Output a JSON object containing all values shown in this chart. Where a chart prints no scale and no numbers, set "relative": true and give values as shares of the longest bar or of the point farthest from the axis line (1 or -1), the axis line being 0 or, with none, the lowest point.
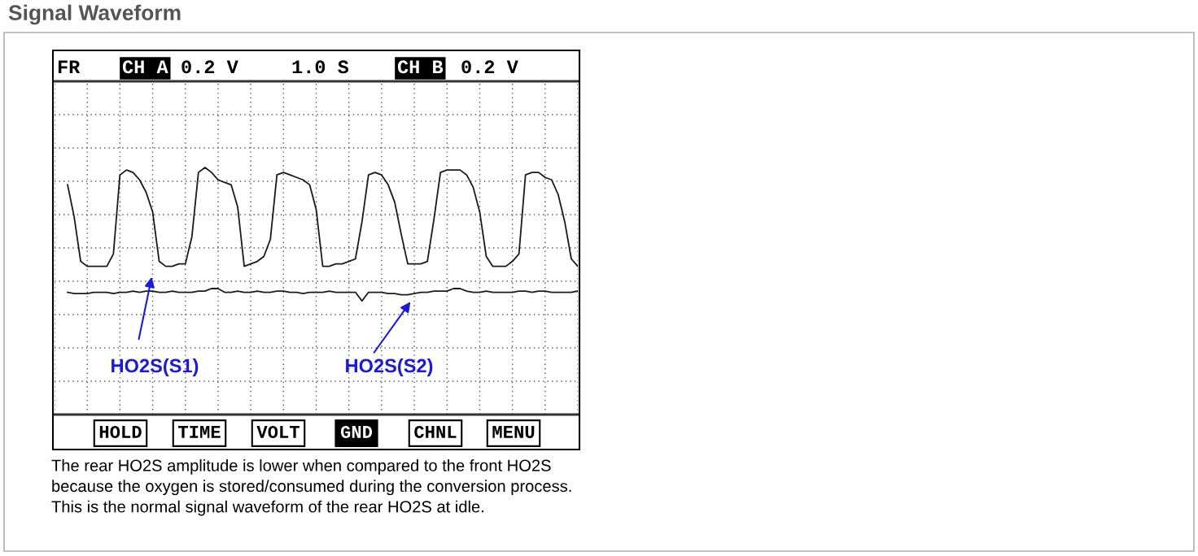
{
  "chart_data": {
    "type": "line",
    "title": "Signal Waveform",
    "relative": true,
    "grid": true,
    "marker": "none",
    "line_style": "solid",
    "categories": [
      null,
      null,
      null,
      null,
      null,
      null,
      null,
      null,
      null,
      null,
      null,
      null,
      null,
      null,
      null,
      null,
      null,
      null,
      null,
      null,
      null,
      null,
      null,
      null,
      null,
      null,
      null,
      null,
      null,
      null,
      null,
      null,
      null,
      null,
      null,
      null,
      null,
      null,
      null,
      null,
      null,
      null,
      null,
      null,
      null,
      null,
      null,
      null,
      null,
      null,
      null,
      null,
      null,
      null,
      null,
      null,
      null,
      null,
      null,
      null,
      null,
      null,
      null,
      null,
      null,
      null,
      null,
      null,
      null,
      null,
      null,
      null,
      null,
      null,
      null,
      null,
      null,
      null,
      null
    ],
    "series": [
      {
        "color": "#1a1a1a",
        "values": [
          0.93,
          0.8,
          0.62,
          0.6,
          0.6,
          0.6,
          0.6,
          0.65,
          0.97,
          0.99,
          0.98,
          0.95,
          0.9,
          0.82,
          0.62,
          0.6,
          0.6,
          0.61,
          0.61,
          0.72,
          0.98,
          1.0,
          0.98,
          0.95,
          0.94,
          0.93,
          0.84,
          0.6,
          0.61,
          0.62,
          0.64,
          0.71,
          0.97,
          0.98,
          0.97,
          0.96,
          0.95,
          0.93,
          0.83,
          0.6,
          0.6,
          0.61,
          0.61,
          0.62,
          0.63,
          0.78,
          0.97,
          0.98,
          0.97,
          0.93,
          0.86,
          0.73,
          0.61,
          0.61,
          0.61,
          0.62,
          0.79,
          0.98,
          0.99,
          0.99,
          0.99,
          0.97,
          0.92,
          0.82,
          0.64,
          0.6,
          0.6,
          0.6,
          0.62,
          0.65,
          0.97,
          0.98,
          0.98,
          0.96,
          0.95,
          0.89,
          0.78,
          0.63,
          0.6
        ]
      },
      {
        "color": "#1a1a1a",
        "values": [
          0.495,
          0.49,
          0.49,
          0.49,
          0.495,
          0.495,
          0.495,
          0.49,
          0.495,
          0.495,
          0.5,
          0.495,
          0.5,
          0.5,
          0.495,
          0.495,
          0.5,
          0.495,
          0.495,
          0.495,
          0.5,
          0.5,
          0.51,
          0.51,
          0.495,
          0.495,
          0.5,
          0.495,
          0.495,
          0.5,
          0.495,
          0.495,
          0.5,
          0.5,
          0.495,
          0.495,
          0.49,
          0.495,
          0.495,
          0.495,
          0.5,
          0.495,
          0.495,
          0.495,
          0.495,
          0.46,
          0.495,
          0.495,
          0.495,
          0.49,
          0.49,
          0.485,
          0.485,
          0.49,
          0.495,
          0.495,
          0.5,
          0.5,
          0.5,
          0.51,
          0.51,
          0.5,
          0.495,
          0.495,
          0.5,
          0.495,
          0.495,
          0.495,
          0.495,
          0.5,
          0.5,
          0.495,
          0.5,
          0.5,
          0.495,
          0.495,
          0.495,
          0.495,
          0.5
        ]
      }
    ],
    "annotations": [
      "FR",
      "CH A",
      "0.2 V",
      "1.0 S",
      "CH B",
      "0.2 V",
      "HOLD",
      "TIME",
      "VOLT",
      "GND",
      "CHNL",
      "MENU",
      "The rear HO2S amplitude is lower when compared to the front HO2S\nbecause the oxygen is stored/consumed during the conversion process.\nThis is the normal signal waveform of the rear HO2S at idle.",
      "HO2S(S1)",
      "HO2S(S2)"
    ]
  }
}
